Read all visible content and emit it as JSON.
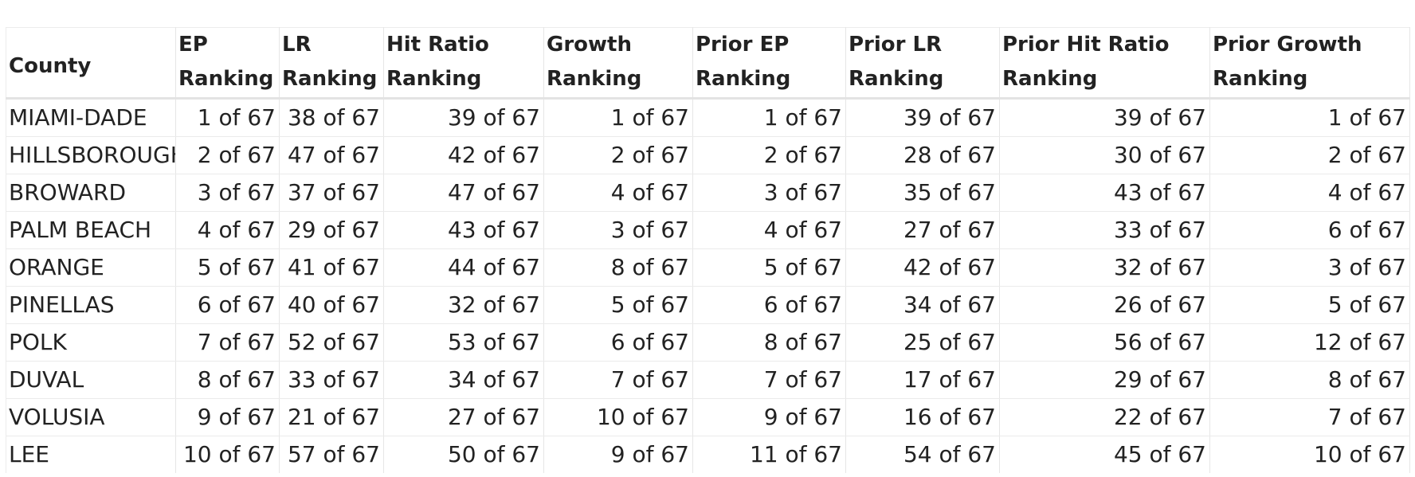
{
  "table": {
    "headers": [
      "County",
      "EP Ranking",
      "LR Ranking",
      "Hit Ratio Ranking",
      "Growth Ranking",
      "Prior EP Ranking",
      "Prior LR Ranking",
      "Prior Hit Ratio Ranking",
      "Prior Growth Ranking"
    ],
    "rows": [
      [
        "MIAMI-DADE",
        "1 of 67",
        "38 of 67",
        "39 of 67",
        "1 of 67",
        "1 of 67",
        "39 of 67",
        "39 of 67",
        "1 of 67"
      ],
      [
        "HILLSBOROUGH",
        "2 of 67",
        "47 of 67",
        "42 of 67",
        "2 of 67",
        "2 of 67",
        "28 of 67",
        "30 of 67",
        "2 of 67"
      ],
      [
        "BROWARD",
        "3 of 67",
        "37 of 67",
        "47 of 67",
        "4 of 67",
        "3 of 67",
        "35 of 67",
        "43 of 67",
        "4 of 67"
      ],
      [
        "PALM BEACH",
        "4 of 67",
        "29 of 67",
        "43 of 67",
        "3 of 67",
        "4 of 67",
        "27 of 67",
        "33 of 67",
        "6 of 67"
      ],
      [
        "ORANGE",
        "5 of 67",
        "41 of 67",
        "44 of 67",
        "8 of 67",
        "5 of 67",
        "42 of 67",
        "32 of 67",
        "3 of 67"
      ],
      [
        "PINELLAS",
        "6 of 67",
        "40 of 67",
        "32 of 67",
        "5 of 67",
        "6 of 67",
        "34 of 67",
        "26 of 67",
        "5 of 67"
      ],
      [
        "POLK",
        "7 of 67",
        "52 of 67",
        "53 of 67",
        "6 of 67",
        "8 of 67",
        "25 of 67",
        "56 of 67",
        "12 of 67"
      ],
      [
        "DUVAL",
        "8 of 67",
        "33 of 67",
        "34 of 67",
        "7 of 67",
        "7 of 67",
        "17 of 67",
        "29 of 67",
        "8 of 67"
      ],
      [
        "VOLUSIA",
        "9 of 67",
        "21 of 67",
        "27 of 67",
        "10 of 67",
        "9 of 67",
        "16 of 67",
        "22 of 67",
        "7 of 67"
      ],
      [
        "LEE",
        "10 of 67",
        "57 of 67",
        "50 of 67",
        "9 of 67",
        "11 of 67",
        "54 of 67",
        "45 of 67",
        "10 of 67"
      ]
    ]
  }
}
